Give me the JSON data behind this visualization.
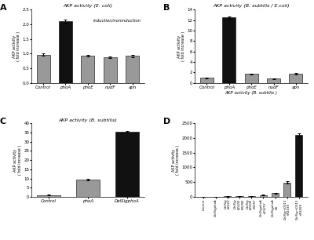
{
  "panel_A": {
    "title": "AKP activity (E. coli)",
    "categories": [
      "Control",
      "phoA",
      "phoE",
      "nudF",
      "apn"
    ],
    "values": [
      0.96,
      2.1,
      0.93,
      0.88,
      0.92
    ],
    "errors": [
      0.04,
      0.05,
      0.03,
      0.03,
      0.04
    ],
    "colors": [
      "#999999",
      "#111111",
      "#999999",
      "#999999",
      "#999999"
    ],
    "ylabel": "AKP activity\n( fold increase )",
    "ylim": [
      0,
      2.5
    ],
    "yticks": [
      0,
      0.5,
      1.0,
      1.5,
      2.0,
      2.5
    ],
    "annotation": "induction/noninduction",
    "xlabel": ""
  },
  "panel_B": {
    "title": "AKP activity (B. subtilis / E.coli)",
    "categories": [
      "Control",
      "phoA",
      "phoE",
      "nudF",
      "apn"
    ],
    "values": [
      1.0,
      12.5,
      1.7,
      0.85,
      1.8
    ],
    "errors": [
      0.08,
      0.25,
      0.12,
      0.08,
      0.12
    ],
    "colors": [
      "#999999",
      "#111111",
      "#999999",
      "#999999",
      "#999999"
    ],
    "ylabel": "AKP activity\n( fold increase )",
    "xlabel": "AKP activity (B. subtilis )",
    "ylim": [
      0,
      14
    ],
    "yticks": [
      0,
      2,
      4,
      6,
      8,
      10,
      12,
      14
    ],
    "annotation": ""
  },
  "panel_C": {
    "title": "AKP activity (B. subtilis)",
    "categories": [
      "Control",
      "phoA",
      "DelSigphoA"
    ],
    "values": [
      1.0,
      9.5,
      35.5
    ],
    "errors": [
      0.15,
      0.35,
      0.5
    ],
    "colors": [
      "#999999",
      "#999999",
      "#111111"
    ],
    "ylabel": "AKP activity\n( fold increase )",
    "xlabel": "",
    "ylim": [
      0,
      40
    ],
    "yticks": [
      0,
      5,
      10,
      15,
      20,
      25,
      30,
      35,
      40
    ],
    "annotation": ""
  },
  "panel_D": {
    "title": "",
    "categories": [
      "Control",
      "DelSigphoA",
      "DelSig\nE222V",
      "DelSig\nE222N\nK329N",
      "DelSig\nE222N\nK325Y",
      "DelSigphoA\n+K325Y",
      "DelSigphoA\n+A",
      "DelSig+D313\n+N103S",
      "DelSig+D313\n+N326S"
    ],
    "values": [
      2,
      8,
      12,
      20,
      30,
      60,
      120,
      480,
      2100
    ],
    "errors": [
      0.5,
      2,
      3,
      4,
      5,
      8,
      15,
      40,
      70
    ],
    "colors": [
      "#999999",
      "#999999",
      "#999999",
      "#999999",
      "#999999",
      "#999999",
      "#999999",
      "#999999",
      "#111111"
    ],
    "ylabel": "AKP activity\n( fold increase )",
    "xlabel": "",
    "ylim": [
      0,
      2500
    ],
    "yticks": [
      0,
      500,
      1000,
      1500,
      2000,
      2500
    ],
    "annotation": ""
  }
}
